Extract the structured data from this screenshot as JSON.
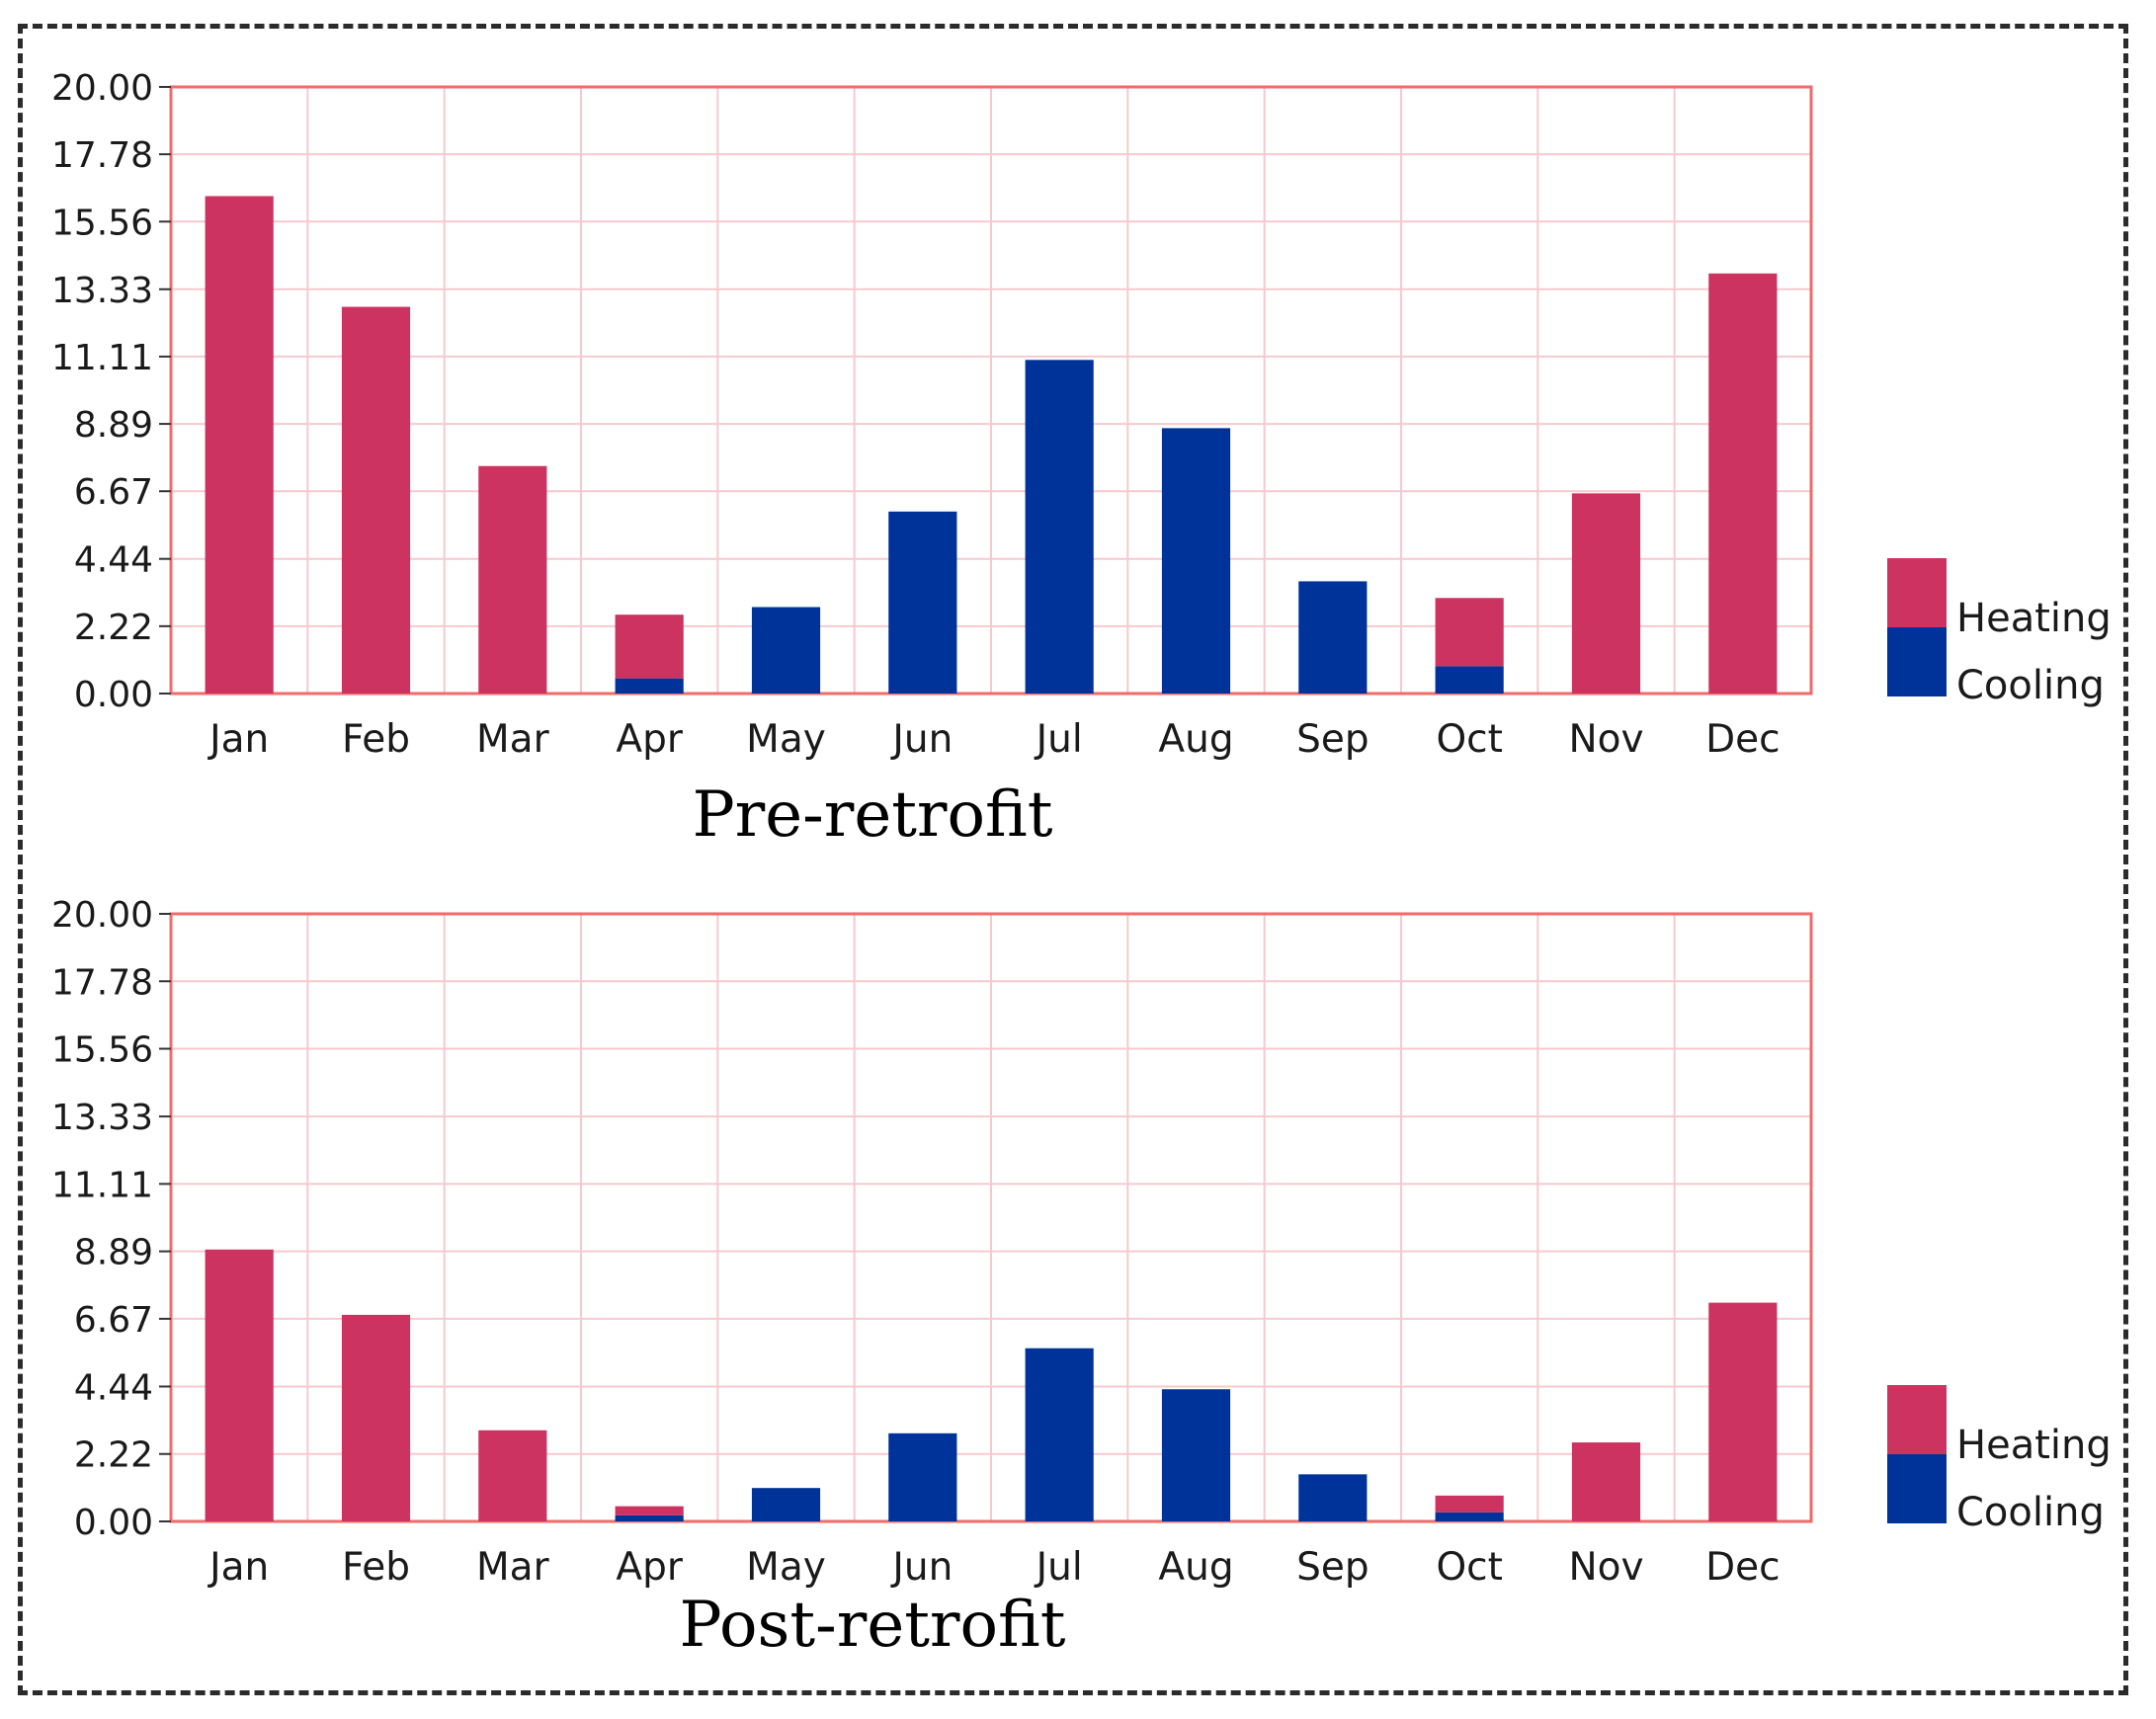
{
  "colors": {
    "heating": "#cc3361",
    "cooling": "#003399",
    "grid": "#f6c9cf",
    "frame": "#f26a6a"
  },
  "chart_data": [
    {
      "type": "bar",
      "stacked": true,
      "title": "Pre-retrofit",
      "categories": [
        "Jan",
        "Feb",
        "Mar",
        "Apr",
        "May",
        "Jun",
        "Jul",
        "Aug",
        "Sep",
        "Oct",
        "Nov",
        "Dec"
      ],
      "yticks": [
        "0.00",
        "2.22",
        "4.44",
        "6.67",
        "8.89",
        "11.11",
        "13.33",
        "15.56",
        "17.78",
        "20.00"
      ],
      "ylim": [
        0,
        20
      ],
      "legend": {
        "position": "right",
        "entries": [
          "Heating",
          "Cooling"
        ]
      },
      "series": [
        {
          "name": "Cooling",
          "values": [
            0,
            0,
            0,
            0.5,
            2.85,
            6.0,
            11.0,
            8.75,
            3.7,
            0.9,
            0,
            0
          ]
        },
        {
          "name": "Heating",
          "values": [
            16.4,
            12.75,
            7.5,
            2.1,
            0,
            0,
            0,
            0,
            0,
            2.25,
            6.6,
            13.85
          ]
        }
      ]
    },
    {
      "type": "bar",
      "stacked": true,
      "title": "Post-retrofit",
      "categories": [
        "Jan",
        "Feb",
        "Mar",
        "Apr",
        "May",
        "Jun",
        "Jul",
        "Aug",
        "Sep",
        "Oct",
        "Nov",
        "Dec"
      ],
      "yticks": [
        "0.00",
        "2.22",
        "4.44",
        "6.67",
        "8.89",
        "11.11",
        "13.33",
        "15.56",
        "17.78",
        "20.00"
      ],
      "ylim": [
        0,
        20
      ],
      "legend": {
        "position": "right",
        "entries": [
          "Heating",
          "Cooling"
        ]
      },
      "series": [
        {
          "name": "Cooling",
          "values": [
            0,
            0,
            0,
            0.2,
            1.1,
            2.9,
            5.7,
            4.35,
            1.55,
            0.3,
            0,
            0
          ]
        },
        {
          "name": "Heating",
          "values": [
            8.95,
            6.8,
            3.0,
            0.3,
            0,
            0,
            0,
            0,
            0,
            0.55,
            2.6,
            7.2
          ]
        }
      ]
    }
  ]
}
